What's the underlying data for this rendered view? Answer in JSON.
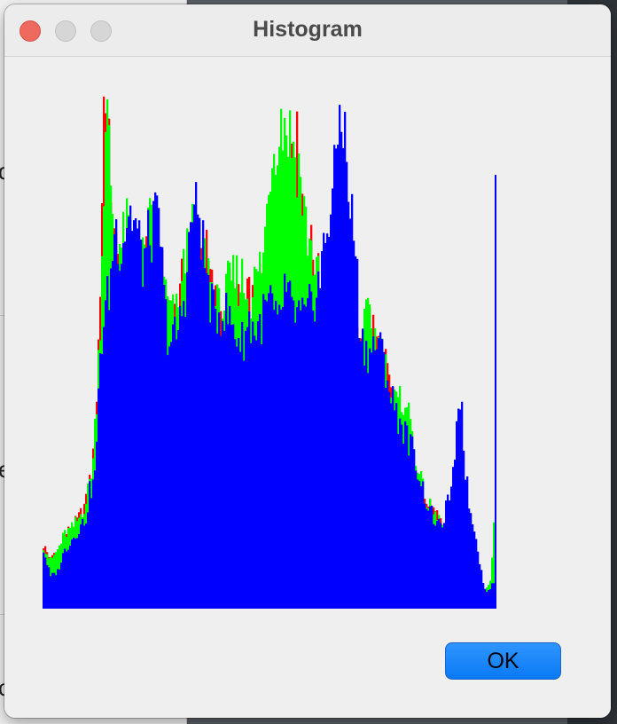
{
  "window": {
    "title": "Histogram"
  },
  "background_fragments": [
    "d",
    "e",
    "c"
  ],
  "buttons": {
    "ok_label": "OK"
  },
  "chart_data": {
    "type": "bar",
    "title": "",
    "xlabel": "",
    "ylabel": "",
    "xlim": [
      0,
      255
    ],
    "ylim": [
      0,
      1
    ],
    "grid": false,
    "legend": "none",
    "colors": {
      "red": "#ff0000",
      "green": "#00ff00",
      "blue": "#0000ff"
    },
    "draw_order": [
      "red",
      "green",
      "blue"
    ],
    "series": [
      {
        "channel": "red",
        "points": [
          [
            0,
            0.12
          ],
          [
            4,
            0.09
          ],
          [
            8,
            0.11
          ],
          [
            12,
            0.14
          ],
          [
            16,
            0.15
          ],
          [
            20,
            0.17
          ],
          [
            24,
            0.2
          ],
          [
            26,
            0.24
          ],
          [
            28,
            0.28
          ],
          [
            30,
            0.4
          ],
          [
            32,
            0.6
          ],
          [
            34,
            0.95
          ],
          [
            35,
            1.0
          ],
          [
            36,
            0.9
          ],
          [
            38,
            0.8
          ],
          [
            40,
            0.68
          ],
          [
            44,
            0.62
          ],
          [
            48,
            0.67
          ],
          [
            52,
            0.62
          ],
          [
            56,
            0.65
          ],
          [
            60,
            0.72
          ],
          [
            64,
            0.68
          ],
          [
            68,
            0.6
          ],
          [
            72,
            0.55
          ],
          [
            76,
            0.55
          ],
          [
            80,
            0.66
          ],
          [
            84,
            0.7
          ],
          [
            88,
            0.67
          ],
          [
            92,
            0.66
          ],
          [
            96,
            0.58
          ],
          [
            100,
            0.55
          ],
          [
            104,
            0.6
          ],
          [
            108,
            0.58
          ],
          [
            112,
            0.55
          ],
          [
            116,
            0.58
          ],
          [
            120,
            0.57
          ],
          [
            124,
            0.62
          ],
          [
            128,
            0.72
          ],
          [
            132,
            0.75
          ],
          [
            136,
            0.78
          ],
          [
            140,
            0.9
          ],
          [
            144,
            0.85
          ],
          [
            148,
            0.7
          ],
          [
            152,
            0.66
          ],
          [
            156,
            0.6
          ],
          [
            160,
            0.55
          ],
          [
            164,
            0.58
          ],
          [
            168,
            0.52
          ],
          [
            172,
            0.45
          ],
          [
            176,
            0.48
          ],
          [
            180,
            0.52
          ],
          [
            184,
            0.55
          ],
          [
            188,
            0.5
          ],
          [
            192,
            0.47
          ],
          [
            196,
            0.4
          ],
          [
            200,
            0.38
          ],
          [
            204,
            0.3
          ],
          [
            208,
            0.28
          ],
          [
            212,
            0.22
          ],
          [
            216,
            0.2
          ],
          [
            220,
            0.18
          ],
          [
            224,
            0.16
          ],
          [
            228,
            0.14
          ],
          [
            232,
            0.1
          ],
          [
            236,
            0.07
          ],
          [
            240,
            0.05
          ],
          [
            244,
            0.04
          ],
          [
            248,
            0.03
          ],
          [
            252,
            0.05
          ],
          [
            255,
            0.2
          ]
        ]
      },
      {
        "channel": "green",
        "points": [
          [
            0,
            0.12
          ],
          [
            4,
            0.09
          ],
          [
            8,
            0.11
          ],
          [
            12,
            0.14
          ],
          [
            16,
            0.15
          ],
          [
            20,
            0.17
          ],
          [
            24,
            0.2
          ],
          [
            26,
            0.24
          ],
          [
            28,
            0.28
          ],
          [
            30,
            0.4
          ],
          [
            32,
            0.55
          ],
          [
            34,
            0.8
          ],
          [
            36,
            0.92
          ],
          [
            38,
            0.8
          ],
          [
            40,
            0.7
          ],
          [
            44,
            0.68
          ],
          [
            48,
            0.72
          ],
          [
            52,
            0.64
          ],
          [
            56,
            0.65
          ],
          [
            60,
            0.72
          ],
          [
            64,
            0.68
          ],
          [
            68,
            0.6
          ],
          [
            72,
            0.55
          ],
          [
            76,
            0.55
          ],
          [
            80,
            0.66
          ],
          [
            84,
            0.7
          ],
          [
            88,
            0.67
          ],
          [
            92,
            0.66
          ],
          [
            96,
            0.58
          ],
          [
            100,
            0.55
          ],
          [
            104,
            0.6
          ],
          [
            108,
            0.62
          ],
          [
            112,
            0.62
          ],
          [
            116,
            0.58
          ],
          [
            120,
            0.62
          ],
          [
            124,
            0.66
          ],
          [
            128,
            0.84
          ],
          [
            132,
            0.9
          ],
          [
            136,
            0.92
          ],
          [
            140,
            0.88
          ],
          [
            144,
            0.83
          ],
          [
            148,
            0.72
          ],
          [
            152,
            0.66
          ],
          [
            156,
            0.6
          ],
          [
            160,
            0.55
          ],
          [
            164,
            0.58
          ],
          [
            168,
            0.52
          ],
          [
            172,
            0.45
          ],
          [
            176,
            0.48
          ],
          [
            180,
            0.52
          ],
          [
            184,
            0.55
          ],
          [
            188,
            0.5
          ],
          [
            192,
            0.47
          ],
          [
            196,
            0.4
          ],
          [
            200,
            0.38
          ],
          [
            204,
            0.4
          ],
          [
            208,
            0.33
          ],
          [
            212,
            0.25
          ],
          [
            216,
            0.2
          ],
          [
            220,
            0.18
          ],
          [
            224,
            0.16
          ],
          [
            228,
            0.14
          ],
          [
            232,
            0.1
          ],
          [
            236,
            0.07
          ],
          [
            240,
            0.05
          ],
          [
            244,
            0.04
          ],
          [
            248,
            0.03
          ],
          [
            252,
            0.05
          ],
          [
            255,
            0.2
          ]
        ]
      },
      {
        "channel": "blue",
        "points": [
          [
            0,
            0.11
          ],
          [
            4,
            0.06
          ],
          [
            8,
            0.07
          ],
          [
            12,
            0.11
          ],
          [
            16,
            0.13
          ],
          [
            20,
            0.15
          ],
          [
            24,
            0.17
          ],
          [
            26,
            0.22
          ],
          [
            28,
            0.23
          ],
          [
            30,
            0.3
          ],
          [
            32,
            0.48
          ],
          [
            34,
            0.54
          ],
          [
            36,
            0.58
          ],
          [
            38,
            0.62
          ],
          [
            40,
            0.72
          ],
          [
            44,
            0.68
          ],
          [
            48,
            0.75
          ],
          [
            52,
            0.72
          ],
          [
            56,
            0.65
          ],
          [
            60,
            0.7
          ],
          [
            64,
            0.73
          ],
          [
            66,
            0.7
          ],
          [
            68,
            0.58
          ],
          [
            70,
            0.52
          ],
          [
            72,
            0.5
          ],
          [
            76,
            0.52
          ],
          [
            80,
            0.6
          ],
          [
            84,
            0.75
          ],
          [
            88,
            0.74
          ],
          [
            92,
            0.62
          ],
          [
            96,
            0.55
          ],
          [
            100,
            0.56
          ],
          [
            104,
            0.55
          ],
          [
            108,
            0.52
          ],
          [
            112,
            0.5
          ],
          [
            116,
            0.54
          ],
          [
            120,
            0.52
          ],
          [
            124,
            0.55
          ],
          [
            128,
            0.58
          ],
          [
            132,
            0.52
          ],
          [
            136,
            0.6
          ],
          [
            140,
            0.56
          ],
          [
            144,
            0.55
          ],
          [
            148,
            0.54
          ],
          [
            152,
            0.58
          ],
          [
            156,
            0.62
          ],
          [
            160,
            0.72
          ],
          [
            164,
            0.8
          ],
          [
            166,
            0.9
          ],
          [
            168,
            0.95
          ],
          [
            170,
            0.88
          ],
          [
            172,
            0.78
          ],
          [
            176,
            0.68
          ],
          [
            178,
            0.55
          ],
          [
            180,
            0.5
          ],
          [
            184,
            0.48
          ],
          [
            188,
            0.5
          ],
          [
            192,
            0.47
          ],
          [
            196,
            0.4
          ],
          [
            200,
            0.36
          ],
          [
            204,
            0.33
          ],
          [
            208,
            0.3
          ],
          [
            212,
            0.25
          ],
          [
            216,
            0.2
          ],
          [
            220,
            0.17
          ],
          [
            224,
            0.15
          ],
          [
            228,
            0.2
          ],
          [
            232,
            0.26
          ],
          [
            234,
            0.4
          ],
          [
            236,
            0.38
          ],
          [
            238,
            0.26
          ],
          [
            240,
            0.2
          ],
          [
            242,
            0.16
          ],
          [
            244,
            0.14
          ],
          [
            246,
            0.09
          ],
          [
            248,
            0.05
          ],
          [
            250,
            0.03
          ],
          [
            252,
            0.04
          ],
          [
            254,
            0.05
          ],
          [
            255,
            0.75
          ]
        ]
      }
    ]
  }
}
